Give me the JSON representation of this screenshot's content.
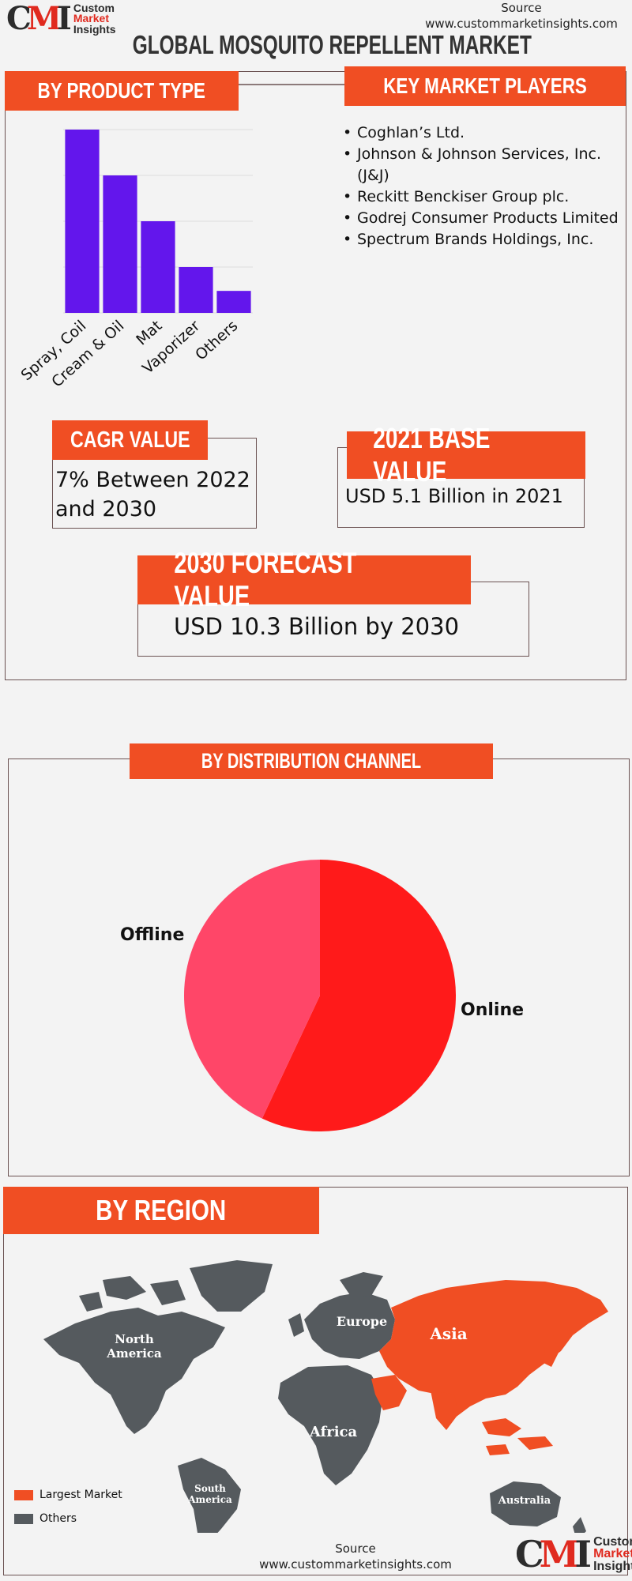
{
  "source_top": {
    "label": "Source",
    "url": "www.custommarketinsights.com"
  },
  "logo": {
    "line1": "Custom",
    "line2": "Market",
    "line3": "Insights",
    "mark": "CMI"
  },
  "title": "GLOBAL MOSQUITO REPELLENT  MARKET",
  "sections": {
    "product_type": "BY PRODUCT TYPE",
    "key_players": "KEY MARKET PLAYERS",
    "cagr": "CAGR VALUE",
    "base_value": "2021 BASE VALUE",
    "forecast": "2030 FORECAST  VALUE",
    "distribution": "BY DISTRIBUTION CHANNEL",
    "region": "BY REGION"
  },
  "key_players": [
    "Coghlan’s Ltd.",
    "Johnson & Johnson Services, Inc. (J&J)",
    "Reckitt Benckiser Group plc.",
    "Godrej Consumer Products Limited",
    "Spectrum Brands Holdings, Inc."
  ],
  "cagr_text": "7% Between 2022 and 2030",
  "base_text": "USD 5.1 Billion in 2021",
  "forecast_text": "USD 10.3 Billion by 2030",
  "chart_data": [
    {
      "type": "bar",
      "categories": [
        "Spray, Coil",
        "Cream & Oil",
        "Mat",
        "Vaporizer",
        "Others"
      ],
      "values": [
        100,
        75,
        50,
        25,
        12
      ],
      "ylim": [
        0,
        100
      ],
      "grid": true,
      "color": "#6316ec"
    },
    {
      "type": "pie",
      "labels": [
        "Online",
        "Offline"
      ],
      "values": [
        57,
        43
      ],
      "colors": [
        "#ff1a1a",
        "#ff4668"
      ]
    }
  ],
  "map": {
    "regions": [
      "North America",
      "Europe",
      "Asia",
      "South America",
      "Africa",
      "Australia"
    ],
    "region_labels": {
      "north_america": [
        "North",
        "America"
      ],
      "europe": "Europe",
      "asia": "Asia",
      "south_america": [
        "South",
        "America"
      ],
      "africa": "Africa",
      "australia": "Australia"
    },
    "largest_market": "Asia",
    "legend": [
      {
        "label": "Largest Market",
        "color": "#f04e23"
      },
      {
        "label": "Others",
        "color": "#555a5e"
      }
    ]
  },
  "source_bottom": {
    "label": "Source",
    "url": "www.custommarketinsights.com"
  }
}
